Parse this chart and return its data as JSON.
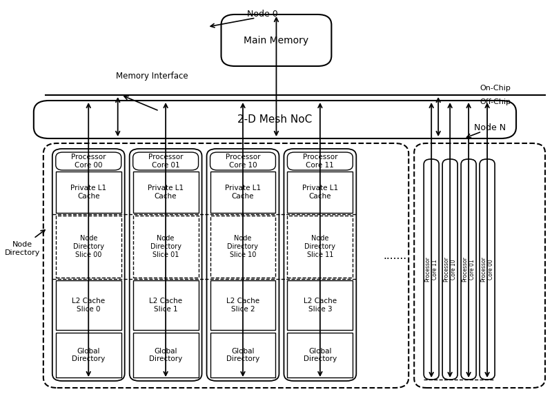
{
  "bg_color": "#ffffff",
  "lc": "#000000",
  "fig_width": 8.0,
  "fig_height": 6.01,
  "processor_cores": [
    "Core 00",
    "Core 01",
    "Core 10",
    "Core 11"
  ],
  "processor_cores_n": [
    "Core 11",
    "Core 10",
    "Core 01",
    "Core 00"
  ],
  "nd_suffixes": [
    "00",
    "01",
    "10",
    "11"
  ],
  "l2_suffixes": [
    "0",
    "1",
    "2",
    "3"
  ],
  "node0_label": "Node 0",
  "node_n_label": "Node N",
  "noc_label": "2-D Mesh NoC",
  "memory_label": "Main Memory",
  "memory_interface_label": "Memory Interface",
  "node_directory_label": "Node\nDirectory",
  "on_chip_label": "On-Chip",
  "off_chip_label": "Off-Chip"
}
